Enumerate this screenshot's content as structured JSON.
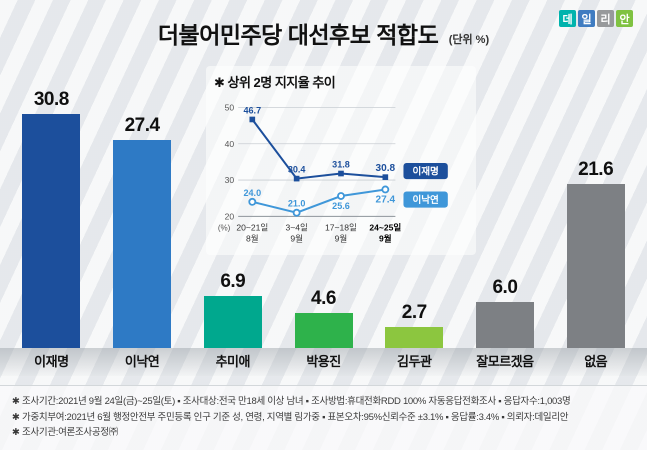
{
  "header": {
    "title": "더불어민주당 대선후보 적합도",
    "unit_label": "(단위 %)"
  },
  "logo": {
    "name": "데일리안",
    "blocks": [
      {
        "char": "데",
        "color": "#00b3ad"
      },
      {
        "char": "일",
        "color": "#3f7cc1"
      },
      {
        "char": "리",
        "color": "#97999b"
      },
      {
        "char": "안",
        "color": "#7fc241"
      }
    ]
  },
  "chart_data": [
    {
      "type": "bar",
      "title": "더불어민주당 대선후보 적합도",
      "unit": "%",
      "categories": [
        "이재명",
        "이낙연",
        "추미애",
        "박용진",
        "김두관",
        "잘모르겠음",
        "없음"
      ],
      "values": [
        30.8,
        27.4,
        6.9,
        4.6,
        2.7,
        6.0,
        21.6
      ],
      "colors": [
        "#1c4f9c",
        "#2e7ac5",
        "#00a88e",
        "#2eb24b",
        "#8cc63f",
        "#7d8084",
        "#7d8084"
      ],
      "ylim": [
        0,
        35
      ]
    },
    {
      "type": "line",
      "title": "✱ 상위 2명 지지율 추이",
      "y_unit": "(%)",
      "ylim": [
        20,
        50
      ],
      "yticks": [
        20,
        30,
        40,
        50
      ],
      "x_labels": [
        [
          "20~21일",
          "8월"
        ],
        [
          "3~4일",
          "9월"
        ],
        [
          "17~18일",
          "9월"
        ],
        [
          "24~25일",
          "9월"
        ]
      ],
      "bold_last_x": true,
      "legend_position": "right",
      "grid": true,
      "series": [
        {
          "name": "이재명",
          "color": "#1c4f9c",
          "marker": "square",
          "values": [
            46.7,
            30.4,
            31.8,
            30.8
          ],
          "label_side": [
            "above",
            "above",
            "above",
            "above"
          ]
        },
        {
          "name": "이낙연",
          "color": "#3f97d9",
          "marker": "circle",
          "values": [
            24.0,
            21.0,
            25.6,
            27.4
          ],
          "label_side": [
            "above",
            "above",
            "below",
            "below"
          ]
        }
      ]
    }
  ],
  "footer": {
    "lines": [
      "✱ 조사기간:2021년 9월 24일(금)~25일(토) ▪ 조사대상:전국 만18세 이상 남녀 ▪ 조사방법:휴대전화RDD 100% 자동응답전화조사 ▪ 응답자수:1,003명",
      "✱ 가중치부여:2021년 6월 행정안전부 주민등록 인구 기준 성, 연령, 지역별 림가중 ▪ 표본오차:95%신뢰수준 ±3.1% ▪ 응답률:3.4% ▪ 의뢰자:데일리안",
      "✱ 조사기관:여론조사공정㈜"
    ]
  }
}
